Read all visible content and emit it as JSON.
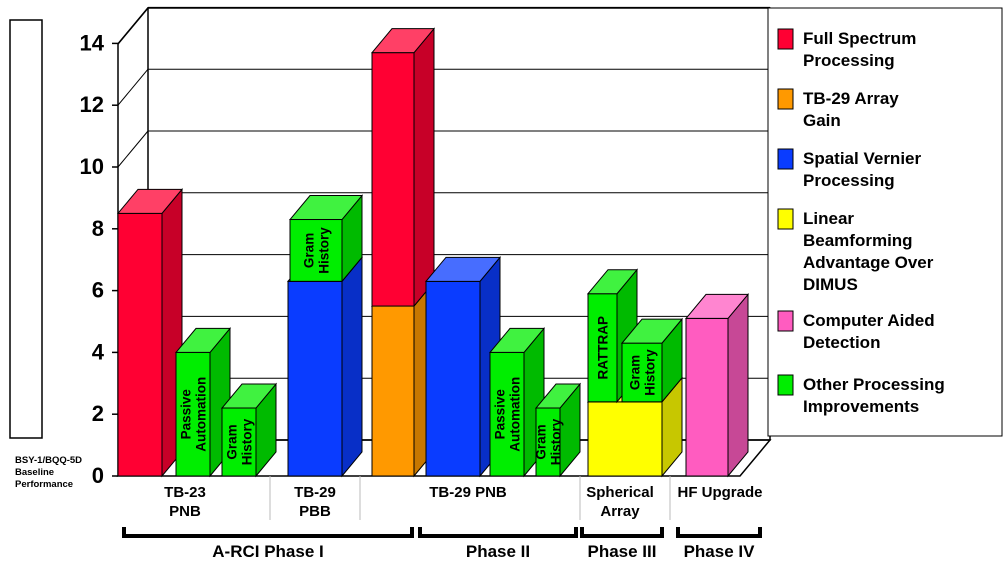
{
  "chart_data": {
    "type": "bar",
    "y_ticks": [
      "0",
      "2",
      "4",
      "6",
      "8",
      "10",
      "12",
      "14"
    ],
    "ylim": [
      0,
      14
    ],
    "baseline_label": [
      "BSY-1/BQQ-5D",
      "Baseline",
      "Performance"
    ],
    "legend": [
      {
        "key": "fsp",
        "label": [
          "Full Spectrum",
          "Processing"
        ],
        "color": "#ff0033"
      },
      {
        "key": "tb29",
        "label": [
          "TB-29 Array",
          "Gain"
        ],
        "color": "#ff9900"
      },
      {
        "key": "svp",
        "label": [
          "Spatial Vernier",
          "Processing"
        ],
        "color": "#0a3cff"
      },
      {
        "key": "lba",
        "label": [
          "Linear",
          "Beamforming",
          "Advantage Over",
          "DIMUS"
        ],
        "color": "#ffff00"
      },
      {
        "key": "cad",
        "label": [
          "Computer Aided",
          "Detection"
        ],
        "color": "#ff5cc0"
      },
      {
        "key": "opi",
        "label": [
          "Other Processing",
          "Improvements"
        ],
        "color": "#00ee00"
      }
    ],
    "bars": [
      {
        "key": "fsp",
        "bottom": 0,
        "value": 8.5,
        "label": []
      },
      {
        "key": "opi",
        "bottom": 0,
        "value": 4,
        "label": [
          "Passive",
          "Automation"
        ]
      },
      {
        "key": "opi",
        "bottom": 0,
        "value": 2.2,
        "label": [
          "Gram",
          "History"
        ]
      },
      {
        "key": "svp",
        "bottom": 0,
        "value": 6.3,
        "label": []
      },
      {
        "key": "opi",
        "bottom": 6.3,
        "value": 2,
        "label": [
          "Gram",
          "History"
        ]
      },
      {
        "key": "tb29",
        "bottom": 0,
        "value": 5.5,
        "label": []
      },
      {
        "key": "fsp",
        "bottom": 5.5,
        "value": 8.2,
        "label": []
      },
      {
        "key": "svp",
        "bottom": 0,
        "value": 6.3,
        "label": []
      },
      {
        "key": "opi",
        "bottom": 0,
        "value": 4,
        "label": [
          "Passive",
          "Automation"
        ]
      },
      {
        "key": "opi",
        "bottom": 0,
        "value": 2.2,
        "label": [
          "Gram",
          "History"
        ]
      },
      {
        "key": "lba",
        "bottom": 0,
        "value": 2.4,
        "label": []
      },
      {
        "key": "opi",
        "bottom": 2.4,
        "value": 3.5,
        "label": [
          "RATTRAP"
        ]
      },
      {
        "key": "opi",
        "bottom": 2.4,
        "value": 1.9,
        "label": [
          "Gram",
          "History"
        ]
      },
      {
        "key": "cad",
        "bottom": 0,
        "value": 5.1,
        "label": []
      }
    ],
    "categories": [
      {
        "label": [
          "TB-23",
          "PNB"
        ]
      },
      {
        "label": [
          "TB-29",
          "PBB"
        ]
      },
      {
        "label": [
          "TB-29 PNB"
        ]
      },
      {
        "label": [
          "Spherical",
          "Array"
        ]
      },
      {
        "label": [
          "HF Upgrade"
        ]
      }
    ],
    "phases": [
      "A-RCI Phase I",
      "Phase II",
      "Phase III",
      "Phase IV"
    ]
  }
}
